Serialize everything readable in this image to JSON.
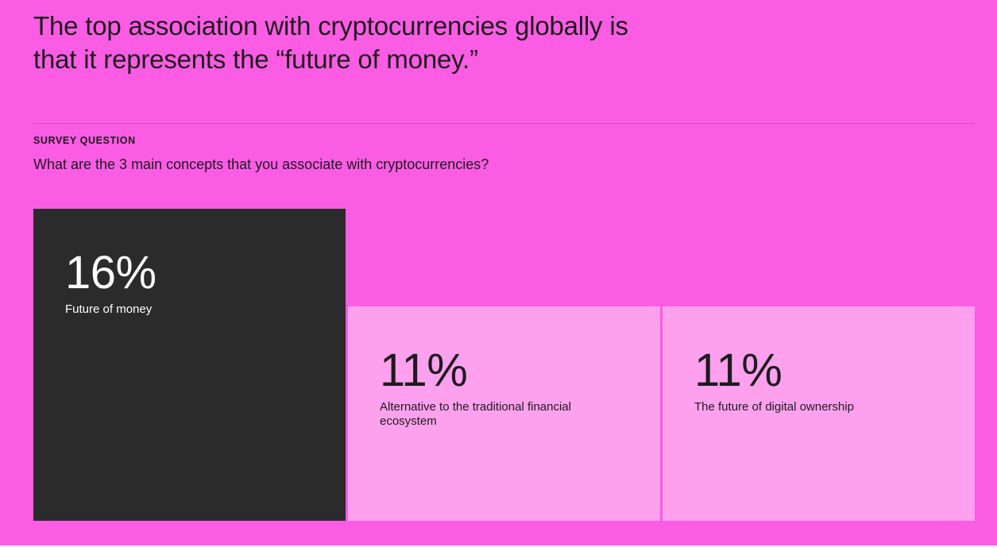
{
  "page": {
    "background_color": "#fb5ce4",
    "text_color": "#1d1b1e",
    "bottom_edge_color": "#ededed"
  },
  "header": {
    "title": "The top association with cryptocurrencies globally is\nthat it represents the “future of money.”"
  },
  "survey": {
    "eyebrow": "SURVEY QUESTION",
    "question": "What are the 3 main concepts that you associate with cryptocurrencies?"
  },
  "chart_data": {
    "type": "bar",
    "title": "The top association with cryptocurrencies globally is that it represents the “future of money.”",
    "categories": [
      "Future of money",
      "Alternative to the traditional financial ecosystem",
      "The future of digital ownership"
    ],
    "values": [
      16,
      11,
      11
    ],
    "unit": "%",
    "ylim": [
      0,
      16
    ],
    "grid": false,
    "legend": false,
    "orientation": "vertical",
    "value_labels_position": "inside-top",
    "bars": [
      {
        "value": 16,
        "display": "16%",
        "label": "Future of money",
        "bg": "#2b2b2b",
        "fg": "#ffffff"
      },
      {
        "value": 11,
        "display": "11%",
        "label": "Alternative to the traditional financial ecosystem",
        "bg": "#fda1ef",
        "fg": "#1d1b1e"
      },
      {
        "value": 11,
        "display": "11%",
        "label": "The future of digital ownership",
        "bg": "#fda1ef",
        "fg": "#1d1b1e"
      }
    ]
  }
}
